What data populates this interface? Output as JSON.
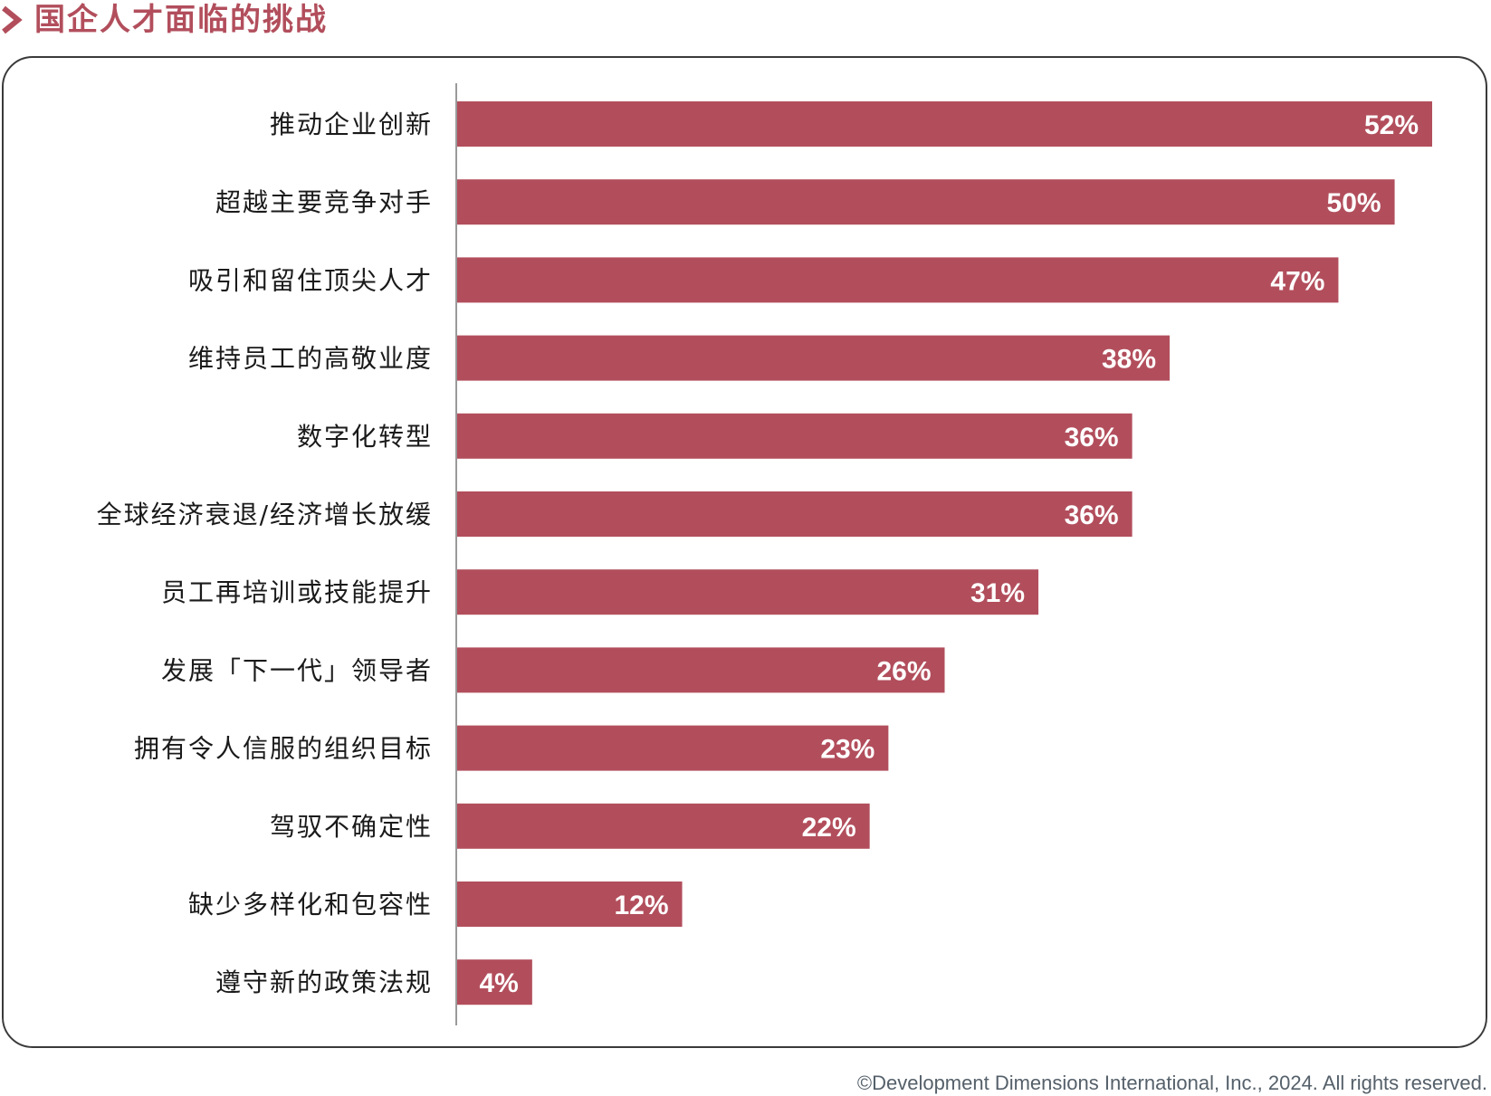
{
  "header": {
    "title": "国企人才面临的挑战",
    "accent_color": "#b24e5c",
    "icon": "chevron-right-icon"
  },
  "chart_data": {
    "type": "bar",
    "orientation": "horizontal",
    "categories": [
      "推动企业创新",
      "超越主要竞争对手",
      "吸引和留住顶尖人才",
      "维持员工的高敬业度",
      "数字化转型",
      "全球经济衰退/经济增长放缓",
      "员工再培训或技能提升",
      "发展「下一代」领导者",
      "拥有令人信服的组织目标",
      "驾驭不确定性",
      "缺少多样化和包容性",
      "遵守新的政策法规"
    ],
    "values": [
      52,
      50,
      47,
      38,
      36,
      36,
      31,
      26,
      23,
      22,
      12,
      4
    ],
    "value_suffix": "%",
    "bar_color": "#b24e5c",
    "label_color": "#ffffff",
    "xlim": [
      0,
      52
    ],
    "grid": false,
    "legend": "none"
  },
  "footer": {
    "copyright": "©Development Dimensions International, Inc., 2024. All rights reserved."
  }
}
